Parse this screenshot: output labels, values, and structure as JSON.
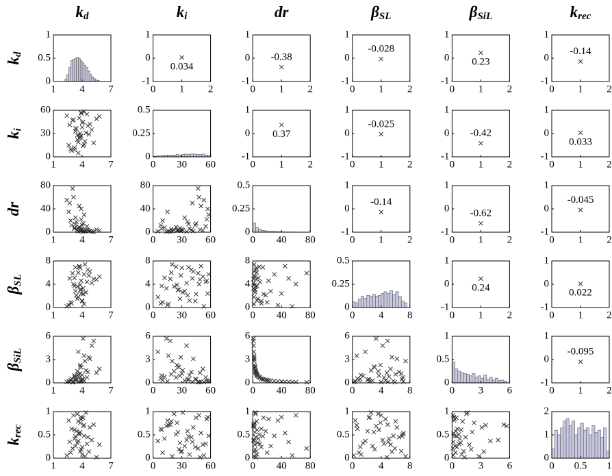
{
  "chart_data": {
    "type": "scatter_matrix",
    "variables": [
      {
        "name": "k",
        "sub": "d",
        "lim": [
          1,
          7
        ],
        "ticks": [
          1,
          4,
          7
        ],
        "samples": [
          3.2,
          4.1,
          3.8,
          2.9,
          4.5,
          3.5,
          4.0,
          3.7,
          5.2,
          3.3,
          4.2,
          2.6,
          3.9,
          4.8,
          3.6,
          3.1,
          4.3,
          3.4,
          5.8,
          3.8,
          2.8,
          4.6,
          3.9,
          3.5,
          4.1,
          3.0,
          4.4,
          3.7,
          2.4,
          5.0,
          3.6,
          4.0,
          3.2,
          4.7,
          3.9,
          3.3,
          4.2,
          5.5,
          3.8,
          2.7
        ]
      },
      {
        "name": "k",
        "sub": "i",
        "lim": [
          0,
          60
        ],
        "ticks": [
          0,
          30,
          60
        ],
        "samples": [
          12,
          45,
          30,
          8,
          55,
          22,
          38,
          50,
          18,
          33,
          58,
          15,
          27,
          42,
          5,
          48,
          20,
          36,
          52,
          25,
          10,
          40,
          56,
          28,
          14,
          47,
          31,
          24,
          53,
          35,
          19,
          44,
          9,
          29,
          57,
          37,
          16,
          49,
          26,
          41
        ]
      },
      {
        "name": "dr",
        "lim": [
          0,
          80
        ],
        "ticks": [
          0,
          40,
          80
        ],
        "samples": [
          8,
          15,
          5,
          12,
          10,
          4,
          6,
          45,
          1,
          25,
          30,
          35,
          3,
          2,
          1.5,
          60,
          2,
          18,
          3,
          2.5,
          20,
          4,
          22,
          7,
          1,
          75,
          3.5,
          9,
          55,
          1.2,
          5.5,
          12,
          6,
          2,
          40,
          14,
          1.8,
          4.5,
          3,
          50
        ]
      },
      {
        "name": "β",
        "sub": "SL",
        "lim": [
          0,
          8
        ],
        "ticks": [
          0,
          4,
          8
        ],
        "samples": [
          5.1,
          2.3,
          6.8,
          0.7,
          4.4,
          3.6,
          1.2,
          7.1,
          4.9,
          2.8,
          5.7,
          0.4,
          3.1,
          6.2,
          1.8,
          4.0,
          7.4,
          2.1,
          5.3,
          3.9,
          0.9,
          6.5,
          4.6,
          1.5,
          3.3,
          5.9,
          2.6,
          7.0,
          0.2,
          4.2,
          6.0,
          1.1,
          3.7,
          5.5,
          2.4,
          6.9,
          0.6,
          4.8,
          3.0,
          5.0
        ]
      },
      {
        "name": "β",
        "sub": "SiL",
        "lim": [
          0,
          6
        ],
        "ticks": [
          0,
          3,
          6
        ],
        "samples": [
          0.8,
          0.45,
          1.2,
          0.55,
          0.7,
          1.5,
          1.0,
          0.15,
          5.4,
          0.3,
          0.25,
          0.2,
          2.0,
          3.1,
          4.0,
          0.1,
          2.8,
          0.4,
          1.8,
          2.3,
          0.35,
          1.4,
          0.3,
          0.9,
          5.7,
          0.08,
          1.6,
          0.7,
          0.12,
          4.8,
          1.1,
          0.5,
          0.95,
          3.3,
          0.18,
          0.45,
          3.5,
          1.3,
          2.1,
          0.13
        ]
      },
      {
        "name": "k",
        "sub": "rec",
        "lim": [
          0,
          1
        ],
        "ticks": [
          0,
          0.5,
          1
        ],
        "samples": [
          0.42,
          0.87,
          0.15,
          0.63,
          0.31,
          0.95,
          0.08,
          0.54,
          0.72,
          0.26,
          0.48,
          0.81,
          0.19,
          0.66,
          0.37,
          0.92,
          0.04,
          0.58,
          0.29,
          0.76,
          0.12,
          0.45,
          0.84,
          0.33,
          0.69,
          0.21,
          0.98,
          0.51,
          0.06,
          0.39,
          0.79,
          0.24,
          0.61,
          0.14,
          0.88,
          0.47,
          0.71,
          0.02,
          0.56,
          0.35
        ]
      }
    ],
    "histograms": [
      {
        "ylim": [
          0,
          1
        ],
        "yticks": [
          0,
          0.5,
          1
        ],
        "bins": [
          2.2,
          2.4,
          2.6,
          2.8,
          3.0,
          3.2,
          3.4,
          3.6,
          3.8,
          4.0,
          4.2,
          4.4,
          4.6,
          4.8,
          5.0,
          5.2,
          5.4,
          5.6,
          5.8
        ],
        "counts": [
          0.05,
          0.15,
          0.3,
          0.45,
          0.48,
          0.5,
          0.52,
          0.5,
          0.45,
          0.4,
          0.35,
          0.3,
          0.22,
          0.15,
          0.1,
          0.06,
          0.03,
          0.02
        ]
      },
      {
        "ylim": [
          0,
          0.5
        ],
        "yticks": [
          0,
          0.25,
          0.5
        ],
        "bins": [
          0,
          3,
          6,
          9,
          12,
          15,
          18,
          21,
          24,
          27,
          30,
          33,
          36,
          39,
          42,
          45,
          48,
          51,
          54,
          57,
          60
        ],
        "counts": [
          0.005,
          0.01,
          0.01,
          0.015,
          0.015,
          0.02,
          0.02,
          0.02,
          0.025,
          0.02,
          0.025,
          0.03,
          0.025,
          0.03,
          0.03,
          0.025,
          0.025,
          0.03,
          0.02,
          0.015
        ]
      },
      {
        "ylim": [
          0,
          0.5
        ],
        "yticks": [
          0,
          0.25,
          0.5
        ],
        "bins": [
          0,
          4,
          8,
          12,
          16,
          20,
          24,
          28,
          32,
          36,
          40,
          44,
          48,
          52,
          56,
          60,
          64,
          68,
          72,
          76,
          80
        ],
        "counts": [
          0.1,
          0.05,
          0.03,
          0.02,
          0.015,
          0.01,
          0.01,
          0.008,
          0.005,
          0.005,
          0.004,
          0.003,
          0.003,
          0.002,
          0.002,
          0.002,
          0.001,
          0.001,
          0.001,
          0.001
        ]
      },
      {
        "ylim": [
          0,
          0.5
        ],
        "yticks": [
          0,
          0.25,
          0.5
        ],
        "bins": [
          0,
          0.4,
          0.8,
          1.2,
          1.6,
          2.0,
          2.4,
          2.8,
          3.2,
          3.6,
          4.0,
          4.4,
          4.8,
          5.2,
          5.6,
          6.0,
          6.4,
          6.8,
          7.2,
          7.6
        ],
        "counts": [
          0.06,
          0.05,
          0.09,
          0.12,
          0.1,
          0.13,
          0.12,
          0.14,
          0.12,
          0.13,
          0.15,
          0.17,
          0.15,
          0.18,
          0.14,
          0.17,
          0.12,
          0.07,
          0.05
        ]
      },
      {
        "ylim": [
          0,
          1
        ],
        "yticks": [
          0,
          0.5,
          1
        ],
        "bins": [
          0,
          0.3,
          0.6,
          0.9,
          1.2,
          1.5,
          1.8,
          2.1,
          2.4,
          2.7,
          3.0,
          3.3,
          3.6,
          3.9,
          4.2,
          4.5,
          4.8,
          5.1,
          5.4,
          5.7
        ],
        "counts": [
          0.45,
          0.3,
          0.25,
          0.22,
          0.2,
          0.18,
          0.15,
          0.2,
          0.12,
          0.15,
          0.1,
          0.17,
          0.08,
          0.12,
          0.06,
          0.1,
          0.05,
          0.06,
          0.04
        ]
      },
      {
        "ylim": [
          0,
          2
        ],
        "yticks": [
          0,
          1,
          2
        ],
        "bins": [
          0,
          0.05,
          0.1,
          0.15,
          0.2,
          0.25,
          0.3,
          0.35,
          0.4,
          0.45,
          0.5,
          0.55,
          0.6,
          0.65,
          0.7,
          0.75,
          0.8,
          0.85,
          0.9,
          0.95,
          1
        ],
        "counts": [
          0.4,
          1.2,
          1.0,
          1.3,
          1.6,
          1.7,
          1.4,
          1.6,
          1.0,
          1.3,
          1.5,
          1.2,
          1.3,
          1.0,
          1.4,
          1.1,
          1.2,
          0.9,
          1.3,
          0.3
        ]
      }
    ],
    "correlations": {
      "x": 1,
      "xlim": [
        0,
        2
      ],
      "xticks": [
        0,
        1,
        2
      ],
      "ylim": [
        -1,
        1
      ],
      "yticks": [
        -1,
        0,
        1
      ],
      "values": [
        [
          0.034,
          -0.38,
          -0.028,
          0.23,
          -0.14
        ],
        [
          0.37,
          -0.025,
          -0.42,
          0.033
        ],
        [
          -0.14,
          -0.62,
          -0.045
        ],
        [
          0.24,
          0.022
        ],
        [
          -0.095
        ]
      ]
    }
  }
}
